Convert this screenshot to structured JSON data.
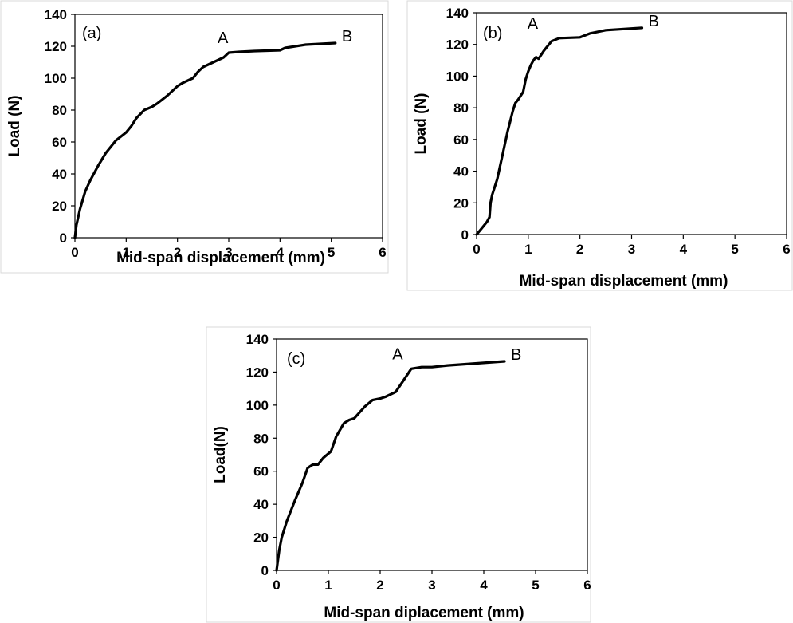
{
  "chart_data": [
    {
      "type": "line",
      "panel_label": "(a)",
      "xlabel": "Mid-span displacement (mm)",
      "ylabel": "Load (N)",
      "xlim": [
        0,
        6
      ],
      "ylim": [
        0,
        140
      ],
      "x_ticks": [
        "0",
        "1",
        "2",
        "3",
        "4",
        "5",
        "6"
      ],
      "y_ticks": [
        "0",
        "20",
        "40",
        "60",
        "80",
        "100",
        "120",
        "140"
      ],
      "grid": false,
      "series": [
        {
          "x": [
            0,
            0.03,
            0.1,
            0.2,
            0.3,
            0.45,
            0.6,
            0.8,
            1.0,
            1.1,
            1.2,
            1.35,
            1.5,
            1.6,
            1.8,
            2.0,
            2.1,
            2.3,
            2.4,
            2.5,
            2.7,
            2.9,
            3.0,
            3.2,
            3.5,
            4.0,
            4.1,
            4.5,
            5.08
          ],
          "y": [
            0,
            8,
            18,
            29,
            36,
            45,
            53,
            61,
            66,
            70,
            75,
            80,
            82,
            84,
            89,
            95,
            97,
            100,
            104,
            107,
            110,
            113,
            116,
            116.5,
            117,
            117.5,
            119,
            121,
            122
          ]
        }
      ],
      "annotations": [
        {
          "text": "A",
          "x": 3.0,
          "y": 116
        },
        {
          "text": "B",
          "x": 5.08,
          "y": 122
        }
      ]
    },
    {
      "type": "line",
      "panel_label": "(b)",
      "xlabel": "Mid-span displacement (mm)",
      "ylabel": "Load (N)",
      "xlim": [
        0,
        6
      ],
      "ylim": [
        0,
        140
      ],
      "x_ticks": [
        "0",
        "1",
        "2",
        "3",
        "4",
        "5",
        "6"
      ],
      "y_ticks": [
        "0",
        "20",
        "40",
        "60",
        "80",
        "100",
        "120",
        "140"
      ],
      "grid": false,
      "series": [
        {
          "x": [
            0,
            0.1,
            0.2,
            0.25,
            0.27,
            0.3,
            0.4,
            0.5,
            0.6,
            0.7,
            0.75,
            0.8,
            0.9,
            0.95,
            1.0,
            1.05,
            1.1,
            1.15,
            1.2,
            1.3,
            1.35,
            1.45,
            1.6,
            2.0,
            2.2,
            2.5,
            3.2
          ],
          "y": [
            0,
            4,
            8,
            11,
            20,
            25,
            35,
            50,
            65,
            78,
            83,
            85,
            90,
            98,
            103,
            107,
            110,
            112,
            111,
            116,
            118,
            122,
            124,
            124.5,
            127,
            129,
            130.5
          ]
        }
      ],
      "annotations": [
        {
          "text": "A",
          "x": 1.2,
          "y": 124
        },
        {
          "text": "B",
          "x": 3.2,
          "y": 130.5
        }
      ]
    },
    {
      "type": "line",
      "panel_label": "(c)",
      "xlabel": "Mid-span diplacement (mm)",
      "ylabel": "Load(N)",
      "xlim": [
        0,
        6
      ],
      "ylim": [
        0,
        140
      ],
      "x_ticks": [
        "0",
        "1",
        "2",
        "3",
        "4",
        "5",
        "6"
      ],
      "y_ticks": [
        "0",
        "20",
        "40",
        "60",
        "80",
        "100",
        "120",
        "140"
      ],
      "grid": false,
      "series": [
        {
          "x": [
            0,
            0.05,
            0.1,
            0.2,
            0.35,
            0.5,
            0.6,
            0.7,
            0.8,
            0.9,
            1.05,
            1.15,
            1.3,
            1.4,
            1.5,
            1.7,
            1.85,
            2.0,
            2.1,
            2.3,
            2.45,
            2.6,
            2.8,
            3.0,
            3.3,
            4.4
          ],
          "y": [
            0,
            12,
            20,
            30,
            42,
            53,
            62,
            64,
            64,
            68,
            72,
            81,
            89,
            91,
            92,
            99,
            103,
            104,
            105,
            108,
            115,
            122,
            123,
            123,
            124,
            126.5
          ]
        }
      ],
      "annotations": [
        {
          "text": "A",
          "x": 2.45,
          "y": 122
        },
        {
          "text": "B",
          "x": 4.4,
          "y": 126.5
        }
      ]
    }
  ]
}
